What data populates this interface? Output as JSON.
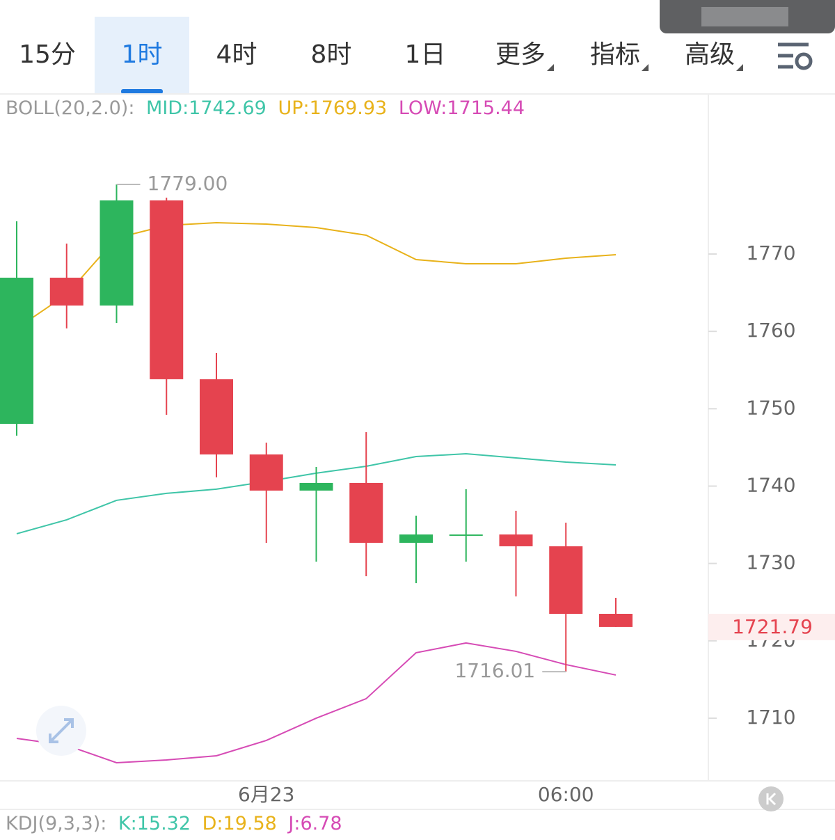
{
  "tabs": [
    "15分",
    "1时",
    "4时",
    "8时",
    "1日",
    "更多",
    "指标",
    "高级"
  ],
  "active_tab": 1,
  "boll_legend": {
    "name": "BOLL(20,2.0):",
    "mid": "MID:1742.69",
    "up": "UP:1769.93",
    "low": "LOW:1715.44"
  },
  "kdj_legend": {
    "name": "KDJ(9,3,3):",
    "k": "K:15.32",
    "d": "D:19.58",
    "j": "J:6.78"
  },
  "chart_data": {
    "type": "candlestick",
    "categories": [
      null,
      null,
      null,
      null,
      null,
      "6月23",
      null,
      null,
      null,
      null,
      null,
      "06:00",
      null
    ],
    "open": [
      1748.05,
      1766.94,
      1763.34,
      1776.93,
      1753.81,
      1744.09,
      1739.42,
      1740.41,
      1732.67,
      1733.75,
      1733.75,
      1732.22,
      1723.49
    ],
    "high": [
      1774.23,
      1771.35,
      1779,
      1777.29,
      1757.23,
      1745.62,
      1742.47,
      1746.97,
      1736.18,
      1739.6,
      1736.81,
      1735.28,
      1725.56
    ],
    "low": [
      1746.52,
      1760.38,
      1761.09,
      1749.22,
      1741.13,
      1732.67,
      1730.24,
      1728.35,
      1727.45,
      1730.24,
      1725.74,
      1716.01,
      1721.79
    ],
    "close": [
      1766.94,
      1763.34,
      1776.93,
      1753.81,
      1744.09,
      1739.42,
      1740.41,
      1732.67,
      1733.75,
      1733.75,
      1732.22,
      1723.49,
      1721.79
    ],
    "up_color": "#2db55d",
    "down_color": "#e5434f",
    "overlays": [
      {
        "color": "#e8b21a",
        "values": [
          1760.38,
          1764.78,
          1772.07,
          1773.69,
          1774.05,
          1773.87,
          1773.42,
          1772.43,
          1769.28,
          1768.74,
          1768.74,
          1769.46,
          1769.91
        ]
      },
      {
        "color": "#3fc5a8",
        "values": [
          1733.84,
          1735.64,
          1738.16,
          1739.06,
          1739.6,
          1740.59,
          1741.67,
          1742.56,
          1743.82,
          1744.18,
          1743.64,
          1743.1,
          1742.74
        ]
      },
      {
        "color": "#d64bb5",
        "values": [
          1707.39,
          1706.49,
          1704.24,
          1704.6,
          1705.14,
          1707.12,
          1710,
          1712.52,
          1718.46,
          1719.72,
          1718.64,
          1716.93,
          1715.58
        ]
      }
    ],
    "ylim": [
      1701.9,
      1790.6
    ],
    "yticks": [
      1710,
      1720,
      1730,
      1740,
      1750,
      1760,
      1770
    ],
    "high_label": "1779.00",
    "low_label": "1716.01",
    "last_price": 1721.79
  }
}
